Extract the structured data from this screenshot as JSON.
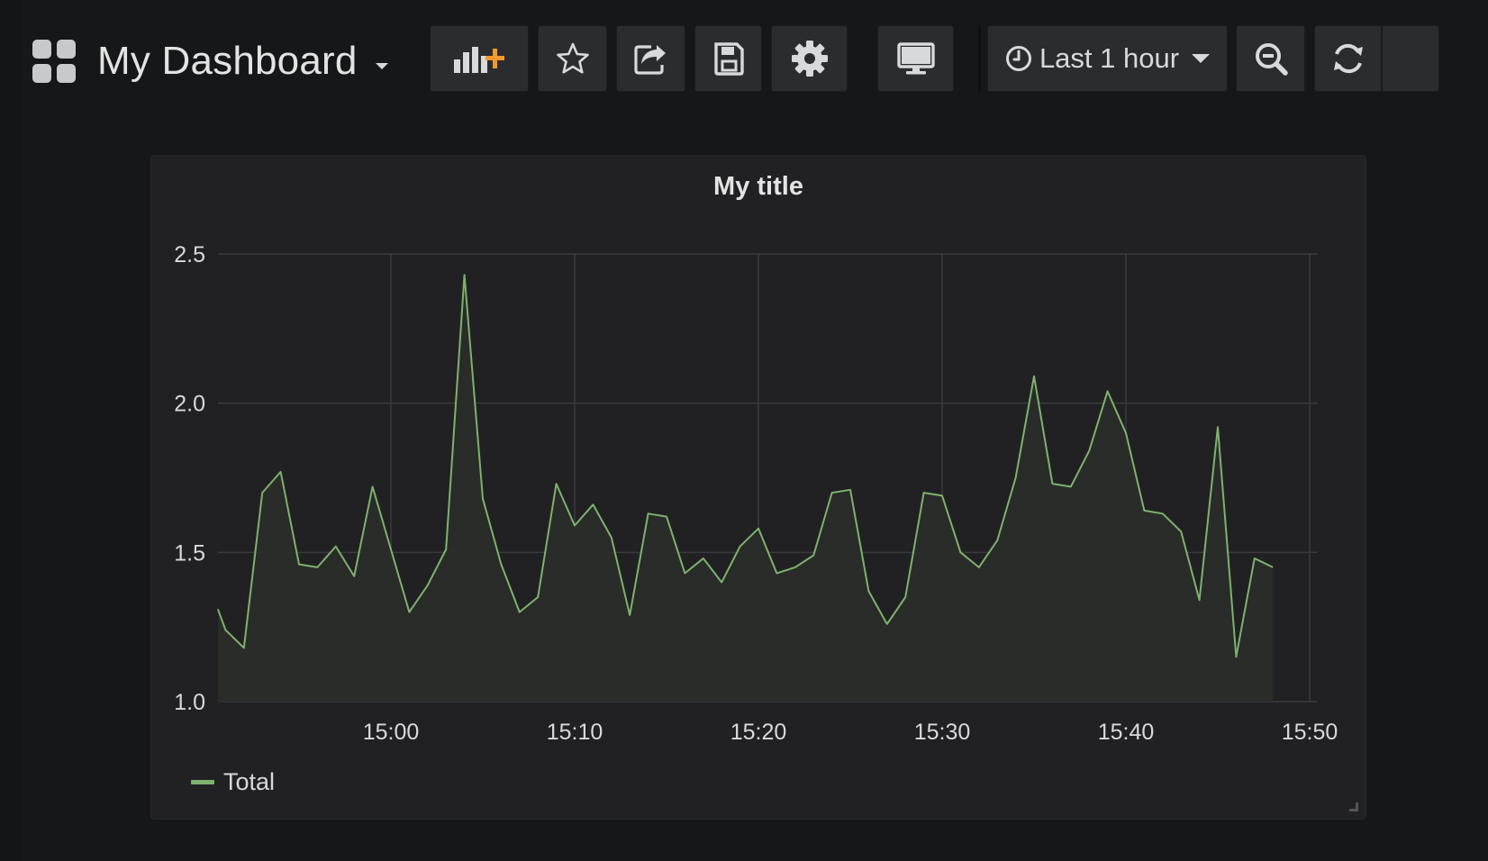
{
  "header": {
    "dashboard_title": "My Dashboard",
    "time_range_label": "Last 1 hour"
  },
  "panel": {
    "title": "My title"
  },
  "chart_data": {
    "type": "area",
    "title": "My title",
    "xlabel": "",
    "ylabel": "",
    "ylim": [
      1.0,
      2.5
    ],
    "y_ticks": [
      "1.0",
      "1.5",
      "2.0",
      "2.5"
    ],
    "x_ticks": [
      "15:00",
      "15:10",
      "15:20",
      "15:30",
      "15:40",
      "15:50"
    ],
    "grid": true,
    "legend_position": "bottom-left",
    "colors": {
      "series": "#7eb26d",
      "fill": "#2a2d29",
      "grid": "#3a3b3e"
    },
    "series": [
      {
        "name": "Total",
        "x": [
          "14:50:35",
          "14:51",
          "14:52",
          "14:53",
          "14:54",
          "14:55",
          "14:56",
          "14:57",
          "14:58",
          "14:59",
          "15:00",
          "15:01",
          "15:02",
          "15:03",
          "15:04",
          "15:05",
          "15:06",
          "15:07",
          "15:08",
          "15:09",
          "15:10",
          "15:11",
          "15:12",
          "15:13",
          "15:14",
          "15:15",
          "15:16",
          "15:17",
          "15:18",
          "15:19",
          "15:20",
          "15:21",
          "15:22",
          "15:23",
          "15:24",
          "15:25",
          "15:26",
          "15:27",
          "15:28",
          "15:29",
          "15:30",
          "15:31",
          "15:32",
          "15:33",
          "15:34",
          "15:35",
          "15:36",
          "15:37",
          "15:38",
          "15:39",
          "15:40",
          "15:41",
          "15:42",
          "15:43",
          "15:44",
          "15:45",
          "15:46",
          "15:47",
          "15:48"
        ],
        "values": [
          1.31,
          1.24,
          1.18,
          1.7,
          1.77,
          1.46,
          1.45,
          1.52,
          1.42,
          1.72,
          1.51,
          1.3,
          1.39,
          1.51,
          2.43,
          1.68,
          1.46,
          1.3,
          1.35,
          1.73,
          1.59,
          1.66,
          1.55,
          1.29,
          1.63,
          1.62,
          1.43,
          1.48,
          1.4,
          1.52,
          1.58,
          1.43,
          1.45,
          1.49,
          1.7,
          1.71,
          1.37,
          1.26,
          1.35,
          1.7,
          1.69,
          1.5,
          1.45,
          1.54,
          1.75,
          2.09,
          1.73,
          1.72,
          1.84,
          2.04,
          1.9,
          1.64,
          1.63,
          1.57,
          1.34,
          1.92,
          1.15,
          1.48,
          1.45
        ]
      }
    ]
  }
}
